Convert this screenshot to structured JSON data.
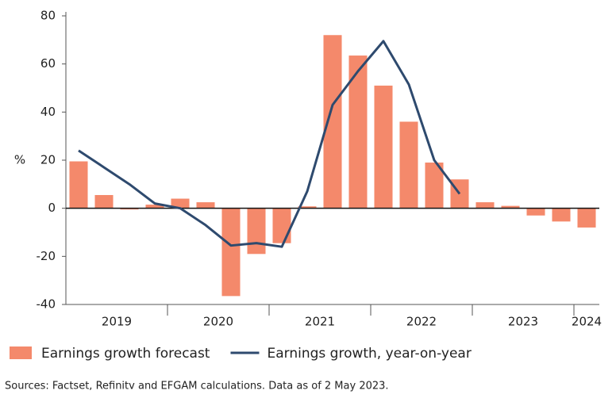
{
  "chart_data": {
    "type": "bar_line",
    "y_label": "%",
    "x_groups": [
      "2019",
      "2020",
      "2021",
      "2022",
      "2023",
      "2024"
    ],
    "categories": [
      null,
      null,
      null,
      null,
      null,
      null,
      null,
      null,
      null,
      null,
      null,
      null,
      null,
      null,
      null,
      null,
      null,
      null,
      null,
      null,
      null
    ],
    "series": [
      {
        "name": "Earnings growth forecast",
        "type": "bar",
        "color": "#f4896b",
        "values": [
          19.5,
          5.5,
          -0.5,
          1.5,
          4,
          2.5,
          -36.5,
          -19,
          -14.5,
          0.8,
          72,
          63.5,
          51,
          36,
          19,
          12,
          2.5,
          1,
          -3,
          -5.5,
          -8
        ]
      },
      {
        "name": "Earnings growth, year-on-year",
        "type": "line",
        "color": "#2e4a6e",
        "values": [
          24,
          17,
          10,
          2,
          0,
          -7,
          -15.5,
          -14.5,
          -16,
          7,
          43,
          57,
          69.5,
          51.5,
          20,
          6,
          null,
          null,
          null,
          null,
          null
        ]
      }
    ],
    "ylim": [
      -40,
      80
    ],
    "yticks": [
      -40,
      -20,
      0,
      20,
      40,
      60,
      80
    ],
    "source": "Sources: Factset, Refinitv and EFGAM calculations. Data as of 2 May 2023."
  }
}
